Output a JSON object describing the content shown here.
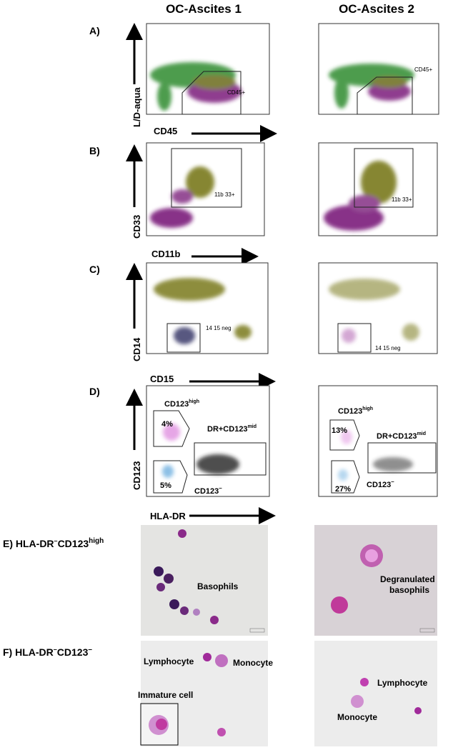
{
  "columns": [
    "OC-Ascites 1",
    "OC-Ascites 2"
  ],
  "panels": [
    {
      "letter": "A)",
      "y_axis": "L/D-aqua",
      "x_axis": "CD45",
      "gate": "CD45+"
    },
    {
      "letter": "B)",
      "y_axis": "CD33",
      "x_axis": "CD11b",
      "gate": "11b 33+"
    },
    {
      "letter": "C)",
      "y_axis": "CD14",
      "x_axis": "CD15",
      "gate": "14 15 neg"
    },
    {
      "letter": "D)",
      "y_axis": "CD123",
      "x_axis": "HLA-DR",
      "gates": {
        "high": {
          "text": "CD123",
          "sup": "high"
        },
        "mid": {
          "text": "DR+CD123",
          "sup": "mid"
        },
        "neg": {
          "text": "CD123",
          "sup": "–"
        }
      },
      "percents": [
        [
          "4%",
          "5%"
        ],
        [
          "13%",
          "27%"
        ]
      ]
    }
  ],
  "images": [
    {
      "letter": "E)",
      "label": [
        {
          "text": "HLA-DR",
          "sup": "–"
        },
        {
          "text": "CD123",
          "sup": "high"
        }
      ],
      "left": [
        "Basophils"
      ],
      "right": [
        "Degranulated",
        "basophils"
      ]
    },
    {
      "letter": "F)",
      "label": [
        {
          "text": "HLA-DR",
          "sup": "–"
        },
        {
          "text": "CD123",
          "sup": "–"
        }
      ],
      "left": [
        "Lymphocyte",
        "Monocyte",
        "Immature cell"
      ],
      "right": [
        "Lymphocyte",
        "Monocyte"
      ]
    }
  ]
}
